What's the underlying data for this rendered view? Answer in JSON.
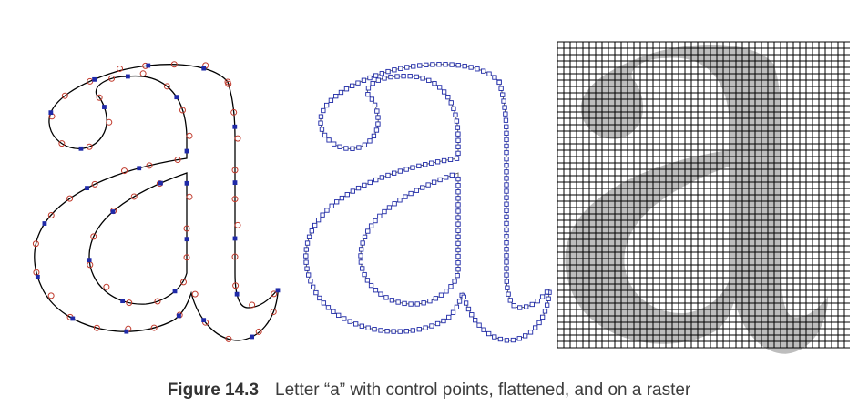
{
  "figure": {
    "label": "Figure 14.3",
    "caption": "Letter “a” with control points, flattened, and on a raster"
  },
  "colors": {
    "outline": "#000000",
    "control_points": "#c0392b",
    "on_curve_points": "#1f2aa8",
    "flattened_points": "#1f2aa8",
    "raster_fill": "#bdbdbd",
    "grid": "#000000"
  },
  "panels": [
    {
      "name": "control-points",
      "description_key": "with control points"
    },
    {
      "name": "flattened",
      "description_key": "flattened"
    },
    {
      "name": "raster",
      "description_key": "on a raster"
    }
  ]
}
